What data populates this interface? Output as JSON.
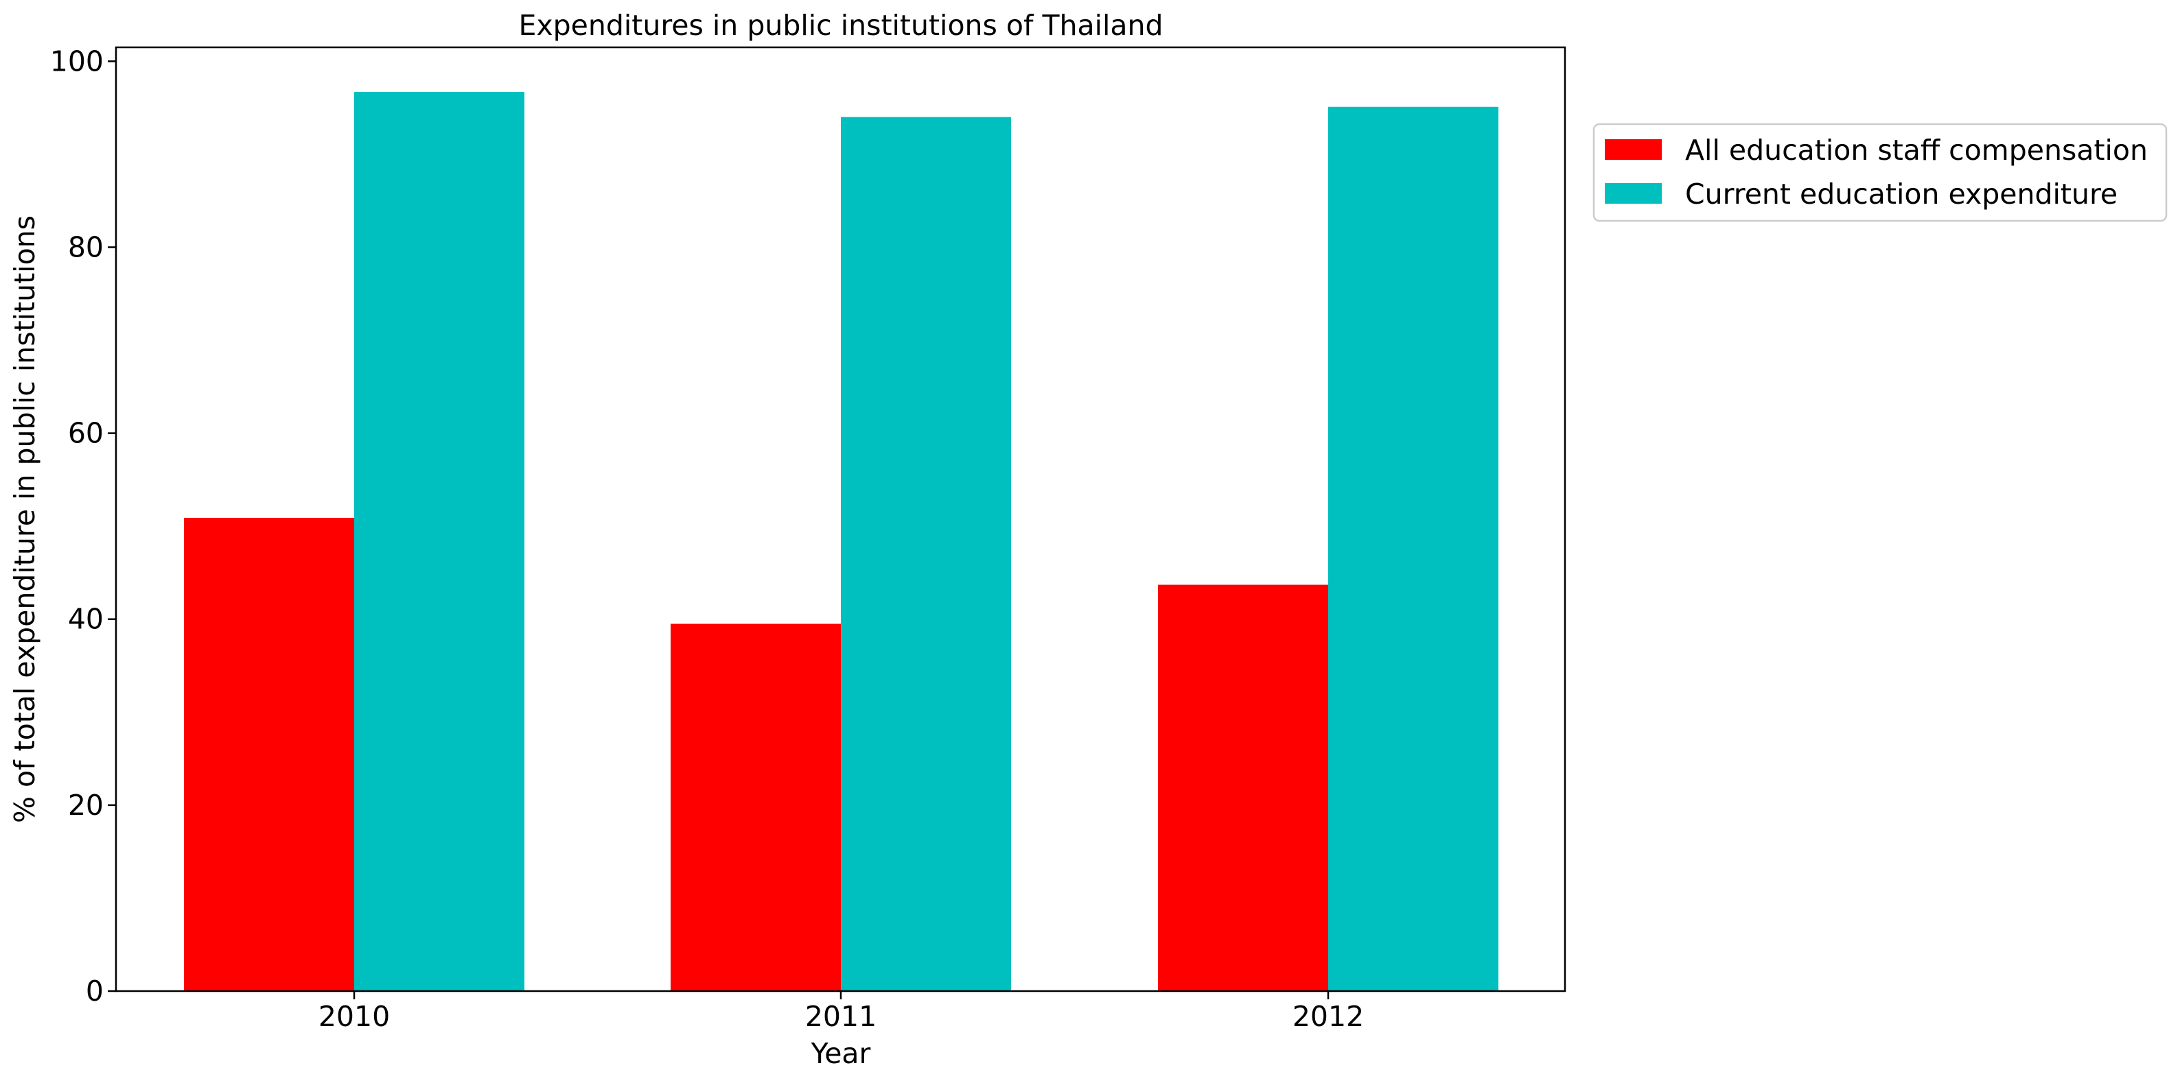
{
  "chart_data": {
    "type": "bar",
    "title": "Expenditures in public institutions of Thailand",
    "xlabel": "Year",
    "ylabel": "% of total expenditure in public institutions",
    "categories": [
      "2010",
      "2011",
      "2012"
    ],
    "series": [
      {
        "name": "All education staff compensation",
        "color": "#ff0000",
        "values": [
          50.9,
          39.5,
          43.7
        ]
      },
      {
        "name": "Current education expenditure",
        "color": "#00bfbf",
        "values": [
          96.7,
          94.0,
          95.1
        ]
      }
    ],
    "ylim": [
      0,
      101.5
    ],
    "yticks": [
      0,
      20,
      40,
      60,
      80,
      100
    ],
    "grid": false,
    "legend": "outside-top-right"
  }
}
